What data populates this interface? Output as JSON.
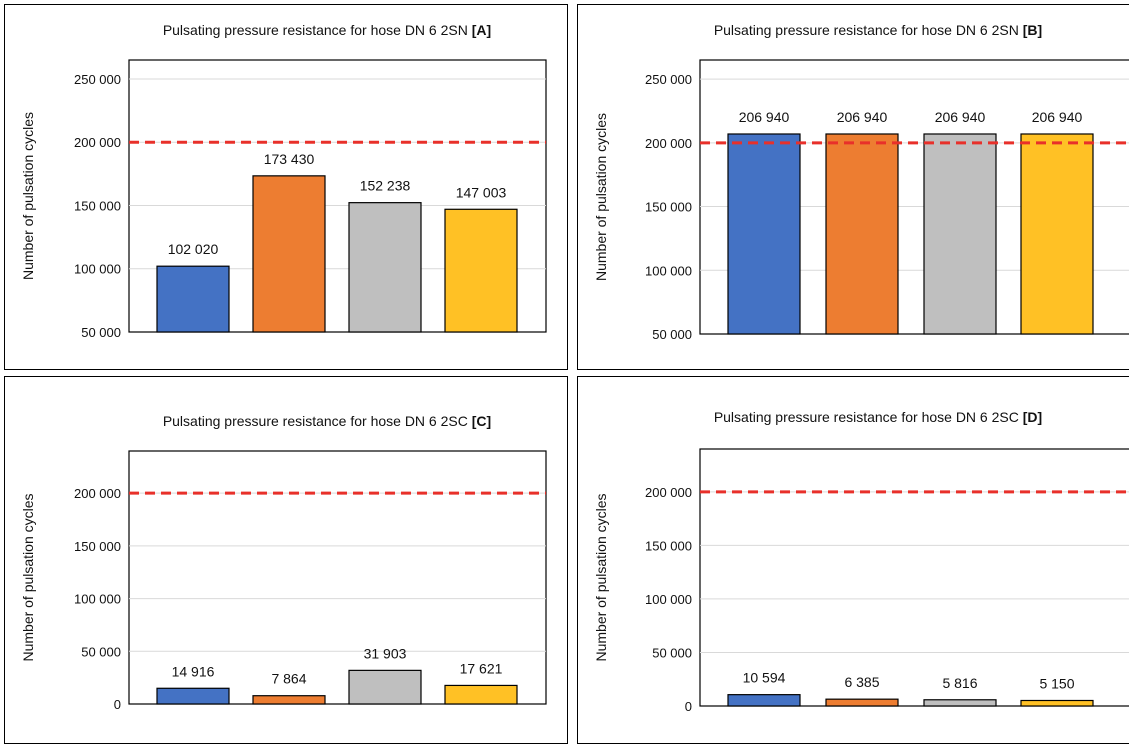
{
  "legend_colors": [
    "#4472C4",
    "#ED7D31",
    "#BFBFBF",
    "#FFC125"
  ],
  "threshold_color": "#E8302A",
  "chart_data": [
    {
      "type": "bar",
      "title": "Pulsating pressure resistance for hose DN 6 2SN",
      "title_tag": "[A]",
      "ylabel": "Number of pulsation cycles",
      "ylim": [
        50000,
        265000
      ],
      "yticks": [
        50000,
        100000,
        150000,
        200000,
        250000
      ],
      "ytick_labels": [
        "50 000",
        "100 000",
        "150 000",
        "200 000",
        "250 000"
      ],
      "values": [
        102020,
        173430,
        152238,
        147003
      ],
      "value_labels": [
        "102 020",
        "173 430",
        "152 238",
        "147 003"
      ],
      "threshold": 200000,
      "grid": true
    },
    {
      "type": "bar",
      "title": "Pulsating pressure resistance for hose DN 6 2SN",
      "title_tag": "[B]",
      "ylabel": "Number of pulsation cycles",
      "ylim": [
        50000,
        265000
      ],
      "yticks": [
        50000,
        100000,
        150000,
        200000,
        250000
      ],
      "ytick_labels": [
        "50 000",
        "100 000",
        "150 000",
        "200 000",
        "250 000"
      ],
      "values": [
        206940,
        206940,
        206940,
        206940
      ],
      "value_labels": [
        "206 940",
        "206 940",
        "206 940",
        "206 940"
      ],
      "threshold": 200000,
      "grid": true
    },
    {
      "type": "bar",
      "title": "Pulsating pressure resistance for hose DN 6 2SC",
      "title_tag": "[C]",
      "ylabel": "Number of pulsation cycles",
      "ylim": [
        0,
        240000
      ],
      "yticks": [
        0,
        50000,
        100000,
        150000,
        200000
      ],
      "ytick_labels": [
        "0",
        "50 000",
        "100 000",
        "150 000",
        "200 000"
      ],
      "values": [
        14916,
        7864,
        31903,
        17621
      ],
      "value_labels": [
        "14 916",
        "7 864",
        "31 903",
        "17 621"
      ],
      "threshold": 200000,
      "grid": true
    },
    {
      "type": "bar",
      "title": "Pulsating pressure resistance for hose DN 6 2SC",
      "title_tag": "[D]",
      "ylabel": "Number of pulsation cycles",
      "ylim": [
        0,
        240000
      ],
      "yticks": [
        0,
        50000,
        100000,
        150000,
        200000
      ],
      "ytick_labels": [
        "0",
        "50 000",
        "100 000",
        "150 000",
        "200 000"
      ],
      "values": [
        10594,
        6385,
        5816,
        5150
      ],
      "value_labels": [
        "10 594",
        "6 385",
        "5 816",
        "5 150"
      ],
      "threshold": 200000,
      "grid": true
    }
  ]
}
